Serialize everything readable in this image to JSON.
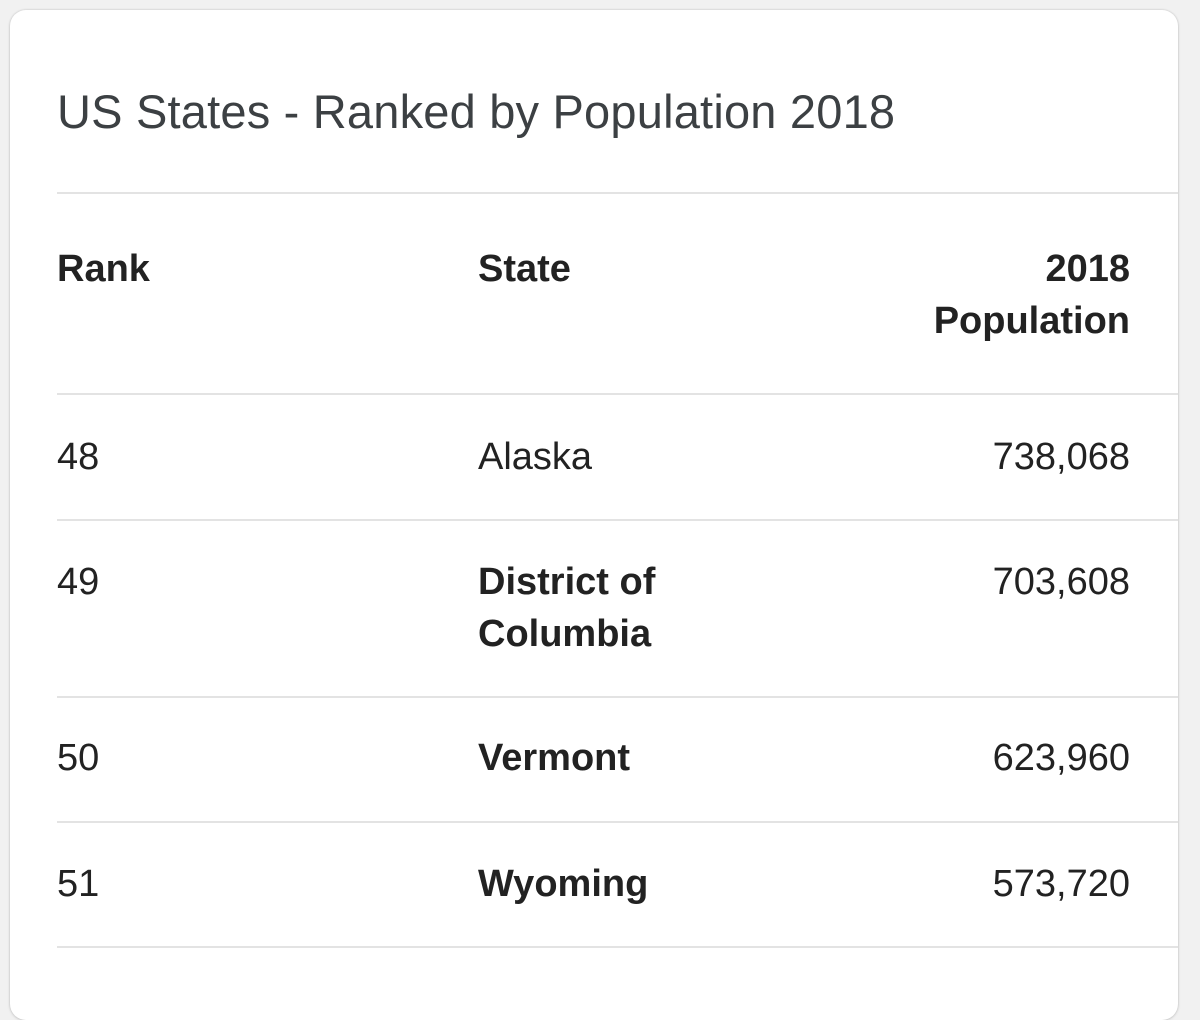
{
  "card": {
    "title": "US States - Ranked by Population 2018"
  },
  "table": {
    "headers": {
      "rank": "Rank",
      "state": "State",
      "population_line1": "2018",
      "population_line2": "Population"
    },
    "rows": [
      {
        "rank": "48",
        "state_line1": "Alaska",
        "state_line2": "",
        "population": "738,068",
        "bold_state": false
      },
      {
        "rank": "49",
        "state_line1": "District of",
        "state_line2": "Columbia",
        "population": "703,608",
        "bold_state": true
      },
      {
        "rank": "50",
        "state_line1": "Vermont",
        "state_line2": "",
        "population": "623,960",
        "bold_state": true
      },
      {
        "rank": "51",
        "state_line1": "Wyoming",
        "state_line2": "",
        "population": "573,720",
        "bold_state": true
      }
    ]
  },
  "colors": {
    "background": "#f1f1f1",
    "card": "#ffffff",
    "title_text": "#3c4043",
    "body_text": "#222222",
    "divider": "#e3e3e3"
  }
}
